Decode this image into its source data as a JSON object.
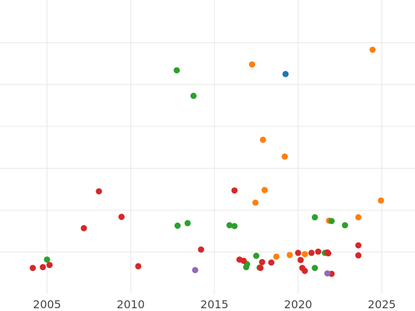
{
  "chart_data": {
    "type": "scatter",
    "title": "",
    "xlabel": "",
    "ylabel": "",
    "xlim": [
      2002.6,
      2026.8
    ],
    "ylim": [
      -0.5,
      6.4
    ],
    "x_ticks": [
      2005,
      2010,
      2015,
      2020,
      2025
    ],
    "x_tick_labels": [
      "2005",
      "2010",
      "2015",
      "2020",
      "2025"
    ],
    "y_gridlines": [
      0.5,
      1.5,
      2.5,
      3.5,
      4.5,
      5.5
    ],
    "grid": true,
    "legend": "none",
    "series": [
      {
        "color": "#1f77b4",
        "points": [
          [
            2019.25,
            4.75
          ]
        ]
      },
      {
        "color": "#ff7f0e",
        "points": [
          [
            2017.25,
            4.98
          ],
          [
            2024.45,
            5.33
          ],
          [
            2017.9,
            3.18
          ],
          [
            2019.2,
            2.78
          ],
          [
            2018.0,
            1.98
          ],
          [
            2017.45,
            1.68
          ],
          [
            2024.95,
            1.73
          ],
          [
            2021.85,
            1.25
          ],
          [
            2023.6,
            1.33
          ],
          [
            2020.4,
            0.45
          ],
          [
            2019.5,
            0.43
          ],
          [
            2018.7,
            0.39
          ]
        ]
      },
      {
        "color": "#2ca02c",
        "points": [
          [
            2012.75,
            4.84
          ],
          [
            2013.75,
            4.23
          ],
          [
            2005.0,
            0.32
          ],
          [
            2012.8,
            1.13
          ],
          [
            2013.4,
            1.19
          ],
          [
            2015.9,
            1.14
          ],
          [
            2016.2,
            1.12
          ],
          [
            2017.5,
            0.41
          ],
          [
            2016.95,
            0.21
          ],
          [
            2016.9,
            0.14
          ],
          [
            2017.7,
            0.13
          ],
          [
            2021.0,
            1.33
          ],
          [
            2022.0,
            1.24
          ],
          [
            2022.8,
            1.14
          ],
          [
            2021.6,
            0.48
          ],
          [
            2021.0,
            0.12
          ]
        ]
      },
      {
        "color": "#d62728",
        "points": [
          [
            2004.15,
            0.12
          ],
          [
            2004.75,
            0.14
          ],
          [
            2005.15,
            0.19
          ],
          [
            2007.2,
            1.07
          ],
          [
            2008.1,
            1.95
          ],
          [
            2009.45,
            1.34
          ],
          [
            2010.45,
            0.16
          ],
          [
            2014.2,
            0.56
          ],
          [
            2016.2,
            1.97
          ],
          [
            2016.5,
            0.32
          ],
          [
            2016.75,
            0.29
          ],
          [
            2017.75,
            0.12
          ],
          [
            2017.85,
            0.26
          ],
          [
            2018.4,
            0.25
          ],
          [
            2020.0,
            0.48
          ],
          [
            2020.15,
            0.31
          ],
          [
            2020.25,
            0.12
          ],
          [
            2020.4,
            0.05
          ],
          [
            2020.8,
            0.48
          ],
          [
            2021.2,
            0.51
          ],
          [
            2021.75,
            0.49
          ],
          [
            2021.8,
            0.47
          ],
          [
            2022.0,
            -0.02
          ],
          [
            2023.6,
            0.66
          ],
          [
            2023.6,
            0.42
          ]
        ]
      },
      {
        "color": "#9467bd",
        "points": [
          [
            2013.85,
            0.07
          ],
          [
            2021.75,
            -0.01
          ]
        ]
      }
    ]
  }
}
